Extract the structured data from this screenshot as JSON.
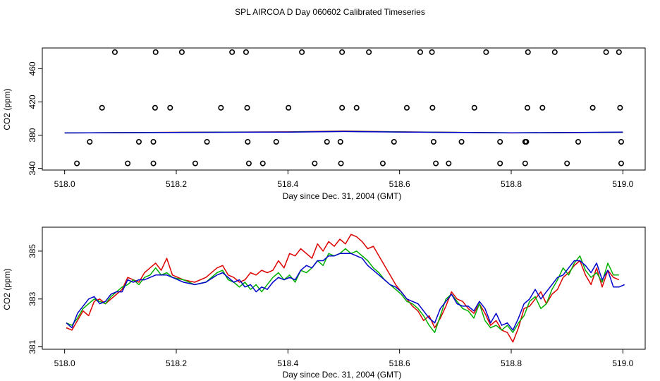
{
  "title": "SPL AIRCOA D  Day 060602  Calibrated Timeseries",
  "colors": {
    "red": "#dd0000",
    "green": "#00b000",
    "blue": "#0000cc",
    "black": "#000000"
  },
  "chart_data": [
    {
      "type": "scatter",
      "xlabel": "Day since Dec. 31, 2004 (GMT)",
      "ylabel": "CO2 (ppm)",
      "xlim": [
        517.96,
        519.04
      ],
      "ylim": [
        338,
        485
      ],
      "xticks": [
        518.0,
        518.2,
        518.4,
        518.6,
        518.8,
        519.0
      ],
      "xtick_labels": [
        "518.0",
        "518.2",
        "518.4",
        "518.6",
        "518.8",
        "519.0"
      ],
      "yticks": [
        340,
        380,
        420,
        460
      ],
      "ytick_labels": [
        "340",
        "380",
        "420",
        "460"
      ],
      "grid": false,
      "series": [
        {
          "color": "black",
          "style": "points",
          "x": [
            518.09,
            518.163,
            518.21,
            518.3,
            518.325,
            518.425,
            518.497,
            518.545,
            518.637,
            518.658,
            518.755,
            518.83,
            518.878,
            518.97,
            518.993,
            518.067,
            518.162,
            518.189,
            518.28,
            518.327,
            518.401,
            518.497,
            518.523,
            518.613,
            518.659,
            518.734,
            518.829,
            518.856,
            518.946,
            518.995,
            518.045,
            518.133,
            518.159,
            518.255,
            518.328,
            518.379,
            518.47,
            518.494,
            518.59,
            518.661,
            518.711,
            518.78,
            518.825,
            518.827,
            518.92,
            518.997,
            518.022,
            518.113,
            518.159,
            518.234,
            518.33,
            518.355,
            518.448,
            518.495,
            518.57,
            518.665,
            518.688,
            518.78,
            518.825,
            518.9,
            518.997
          ],
          "y": [
            480,
            480,
            480,
            480,
            480,
            480,
            480,
            480,
            480,
            480,
            480,
            480,
            480,
            480,
            480,
            413,
            413,
            413,
            413,
            413,
            413,
            413,
            413,
            413,
            413,
            413,
            413,
            413,
            413,
            413,
            372,
            372,
            372,
            372,
            372,
            372,
            372,
            372,
            372,
            372,
            372,
            372,
            372,
            372,
            372,
            372,
            346,
            346,
            346,
            346,
            346,
            346,
            346,
            346,
            346,
            346,
            346,
            346,
            346,
            346,
            346
          ]
        },
        {
          "color": "red",
          "style": "line",
          "x": [
            518.0,
            518.2,
            518.4,
            518.5,
            518.6,
            518.8,
            519.0
          ],
          "y": [
            382.7,
            383.5,
            384.0,
            385.0,
            384.0,
            382.7,
            383.5
          ]
        },
        {
          "color": "green",
          "style": "line",
          "x": [
            518.0,
            518.2,
            518.4,
            518.5,
            518.6,
            518.8,
            519.0
          ],
          "y": [
            382.7,
            383.4,
            383.8,
            384.6,
            383.9,
            382.8,
            383.5
          ]
        },
        {
          "color": "blue",
          "style": "line",
          "x": [
            518.0,
            518.2,
            518.4,
            518.5,
            518.6,
            518.8,
            519.0
          ],
          "y": [
            382.7,
            383.3,
            383.7,
            384.4,
            383.8,
            382.8,
            383.6
          ]
        }
      ]
    },
    {
      "type": "line",
      "xlabel": "Day since Dec. 31, 2004 (GMT)",
      "ylabel": "CO2 (ppm)",
      "xlim": [
        517.96,
        519.04
      ],
      "ylim": [
        380.9,
        386.0
      ],
      "xticks": [
        518.0,
        518.2,
        518.4,
        518.6,
        518.8,
        519.0
      ],
      "xtick_labels": [
        "518.0",
        "518.2",
        "518.4",
        "518.6",
        "518.8",
        "519.0"
      ],
      "yticks": [
        381,
        383,
        385
      ],
      "ytick_labels": [
        "381",
        "383",
        "385"
      ],
      "grid": false,
      "series": [
        {
          "color": "red",
          "style": "line",
          "x": [
            518.003,
            518.013,
            518.023,
            518.033,
            518.043,
            518.053,
            518.063,
            518.073,
            518.083,
            518.093,
            518.103,
            518.113,
            518.123,
            518.133,
            518.143,
            518.153,
            518.163,
            518.173,
            518.183,
            518.193,
            518.213,
            518.233,
            518.253,
            518.273,
            518.283,
            518.293,
            518.303,
            518.313,
            518.323,
            518.333,
            518.343,
            518.353,
            518.363,
            518.373,
            518.383,
            518.393,
            518.403,
            518.413,
            518.423,
            518.433,
            518.443,
            518.453,
            518.463,
            518.473,
            518.483,
            518.493,
            518.503,
            518.513,
            518.523,
            518.533,
            518.543,
            518.553,
            518.563,
            518.573,
            518.583,
            518.593,
            518.603,
            518.613,
            518.623,
            518.633,
            518.643,
            518.653,
            518.663,
            518.673,
            518.683,
            518.693,
            518.703,
            518.713,
            518.723,
            518.733,
            518.743,
            518.753,
            518.763,
            518.773,
            518.783,
            518.793,
            518.803,
            518.813,
            518.823,
            518.833,
            518.843,
            518.853,
            518.863,
            518.873,
            518.883,
            518.893,
            518.903,
            518.913,
            518.923,
            518.933,
            518.943,
            518.953,
            518.963,
            518.973,
            518.983,
            518.993
          ],
          "y": [
            381.8,
            381.7,
            382.1,
            382.5,
            382.3,
            382.9,
            383.0,
            382.8,
            383.0,
            383.2,
            383.4,
            383.9,
            383.8,
            383.7,
            384.1,
            384.3,
            384.5,
            384.2,
            384.7,
            384.0,
            383.8,
            383.7,
            383.9,
            384.3,
            384.4,
            384.0,
            383.9,
            383.7,
            383.8,
            384.1,
            384.0,
            384.2,
            384.1,
            384.2,
            384.6,
            384.3,
            384.9,
            384.8,
            385.1,
            384.9,
            384.7,
            385.3,
            385.0,
            385.4,
            385.2,
            385.5,
            385.3,
            385.7,
            385.6,
            385.4,
            385.1,
            385.2,
            384.8,
            384.4,
            384.0,
            383.6,
            383.3,
            383.0,
            382.7,
            382.5,
            382.1,
            382.3,
            381.8,
            382.2,
            382.7,
            383.3,
            383.0,
            382.9,
            382.6,
            382.4,
            382.8,
            382.4,
            381.9,
            382.1,
            381.7,
            381.6,
            381.2,
            381.8,
            382.6,
            382.7,
            383.0,
            383.3,
            382.8,
            383.2,
            383.4,
            383.9,
            384.1,
            384.4,
            384.6,
            384.0,
            383.6,
            384.3,
            383.5,
            384.2,
            383.9,
            383.8
          ]
        },
        {
          "color": "green",
          "style": "line",
          "x": [
            518.003,
            518.013,
            518.023,
            518.033,
            518.043,
            518.053,
            518.063,
            518.073,
            518.083,
            518.093,
            518.103,
            518.113,
            518.123,
            518.133,
            518.143,
            518.153,
            518.163,
            518.173,
            518.183,
            518.193,
            518.213,
            518.233,
            518.253,
            518.273,
            518.283,
            518.293,
            518.303,
            518.313,
            518.323,
            518.333,
            518.343,
            518.353,
            518.363,
            518.373,
            518.383,
            518.393,
            518.403,
            518.413,
            518.423,
            518.433,
            518.443,
            518.453,
            518.463,
            518.473,
            518.483,
            518.493,
            518.503,
            518.513,
            518.523,
            518.533,
            518.543,
            518.553,
            518.563,
            518.573,
            518.583,
            518.593,
            518.603,
            518.613,
            518.623,
            518.633,
            518.643,
            518.653,
            518.663,
            518.673,
            518.683,
            518.693,
            518.703,
            518.713,
            518.723,
            518.733,
            518.743,
            518.753,
            518.763,
            518.773,
            518.783,
            518.793,
            518.803,
            518.813,
            518.823,
            518.833,
            518.843,
            518.853,
            518.863,
            518.873,
            518.883,
            518.893,
            518.903,
            518.913,
            518.923,
            518.933,
            518.943,
            518.953,
            518.963,
            518.973,
            518.983,
            518.993
          ],
          "y": [
            382.0,
            381.9,
            382.2,
            382.6,
            382.8,
            383.0,
            382.9,
            382.8,
            383.1,
            383.3,
            383.5,
            383.6,
            383.8,
            383.6,
            383.9,
            384.0,
            384.3,
            384.0,
            384.1,
            383.9,
            383.8,
            383.6,
            383.7,
            384.1,
            384.2,
            383.8,
            383.7,
            383.5,
            383.7,
            383.4,
            383.6,
            383.3,
            383.6,
            383.9,
            384.1,
            383.8,
            384.0,
            383.7,
            384.2,
            384.1,
            384.3,
            384.6,
            384.4,
            384.9,
            384.8,
            384.9,
            385.1,
            384.9,
            385.0,
            384.8,
            384.6,
            384.3,
            384.1,
            383.8,
            383.6,
            383.4,
            383.2,
            382.9,
            382.8,
            382.6,
            382.3,
            381.9,
            381.6,
            382.3,
            383.0,
            383.2,
            382.9,
            382.6,
            382.5,
            382.2,
            382.8,
            382.1,
            381.8,
            381.9,
            381.7,
            381.9,
            381.6,
            382.0,
            382.3,
            382.9,
            383.1,
            382.6,
            382.8,
            383.4,
            383.8,
            384.3,
            384.0,
            384.5,
            384.8,
            384.2,
            383.9,
            384.1,
            383.7,
            384.5,
            384.0,
            384.0
          ]
        },
        {
          "color": "blue",
          "style": "line",
          "x": [
            518.003,
            518.013,
            518.023,
            518.033,
            518.043,
            518.053,
            518.063,
            518.073,
            518.083,
            518.093,
            518.103,
            518.113,
            518.123,
            518.133,
            518.143,
            518.153,
            518.163,
            518.173,
            518.183,
            518.193,
            518.213,
            518.233,
            518.253,
            518.273,
            518.283,
            518.293,
            518.303,
            518.313,
            518.323,
            518.333,
            518.343,
            518.353,
            518.363,
            518.373,
            518.383,
            518.393,
            518.403,
            518.413,
            518.423,
            518.433,
            518.443,
            518.453,
            518.463,
            518.473,
            518.483,
            518.493,
            518.503,
            518.513,
            518.523,
            518.533,
            518.543,
            518.553,
            518.563,
            518.573,
            518.583,
            518.593,
            518.603,
            518.613,
            518.623,
            518.633,
            518.643,
            518.653,
            518.663,
            518.673,
            518.683,
            518.693,
            518.703,
            518.713,
            518.723,
            518.733,
            518.743,
            518.753,
            518.763,
            518.773,
            518.783,
            518.793,
            518.803,
            518.813,
            518.823,
            518.833,
            518.843,
            518.853,
            518.863,
            518.873,
            518.883,
            518.893,
            518.903,
            518.913,
            518.923,
            518.933,
            518.943,
            518.953,
            518.963,
            518.973,
            518.983,
            518.993,
            519.003
          ],
          "y": [
            382.0,
            381.8,
            382.4,
            382.7,
            383.0,
            383.1,
            382.8,
            382.9,
            383.2,
            383.3,
            383.3,
            383.8,
            383.7,
            383.8,
            383.8,
            383.9,
            384.0,
            384.0,
            384.0,
            383.9,
            383.7,
            383.6,
            383.7,
            384.0,
            384.1,
            383.9,
            383.7,
            383.8,
            383.5,
            383.6,
            383.3,
            383.5,
            383.4,
            383.7,
            383.9,
            383.8,
            383.9,
            383.8,
            384.2,
            384.4,
            384.3,
            384.6,
            384.6,
            384.8,
            384.8,
            384.9,
            384.9,
            384.9,
            384.8,
            384.7,
            384.4,
            384.2,
            384.0,
            383.8,
            383.6,
            383.5,
            383.3,
            383.0,
            382.9,
            382.8,
            382.5,
            382.2,
            382.0,
            382.6,
            382.9,
            383.2,
            382.8,
            382.7,
            382.7,
            382.5,
            382.9,
            382.6,
            382.0,
            382.4,
            381.9,
            382.0,
            381.7,
            382.2,
            382.8,
            383.0,
            383.4,
            383.0,
            383.3,
            383.6,
            383.9,
            384.0,
            384.3,
            384.6,
            384.6,
            384.4,
            384.1,
            384.5,
            383.8,
            384.2,
            383.5,
            383.5,
            383.6
          ]
        }
      ]
    }
  ]
}
